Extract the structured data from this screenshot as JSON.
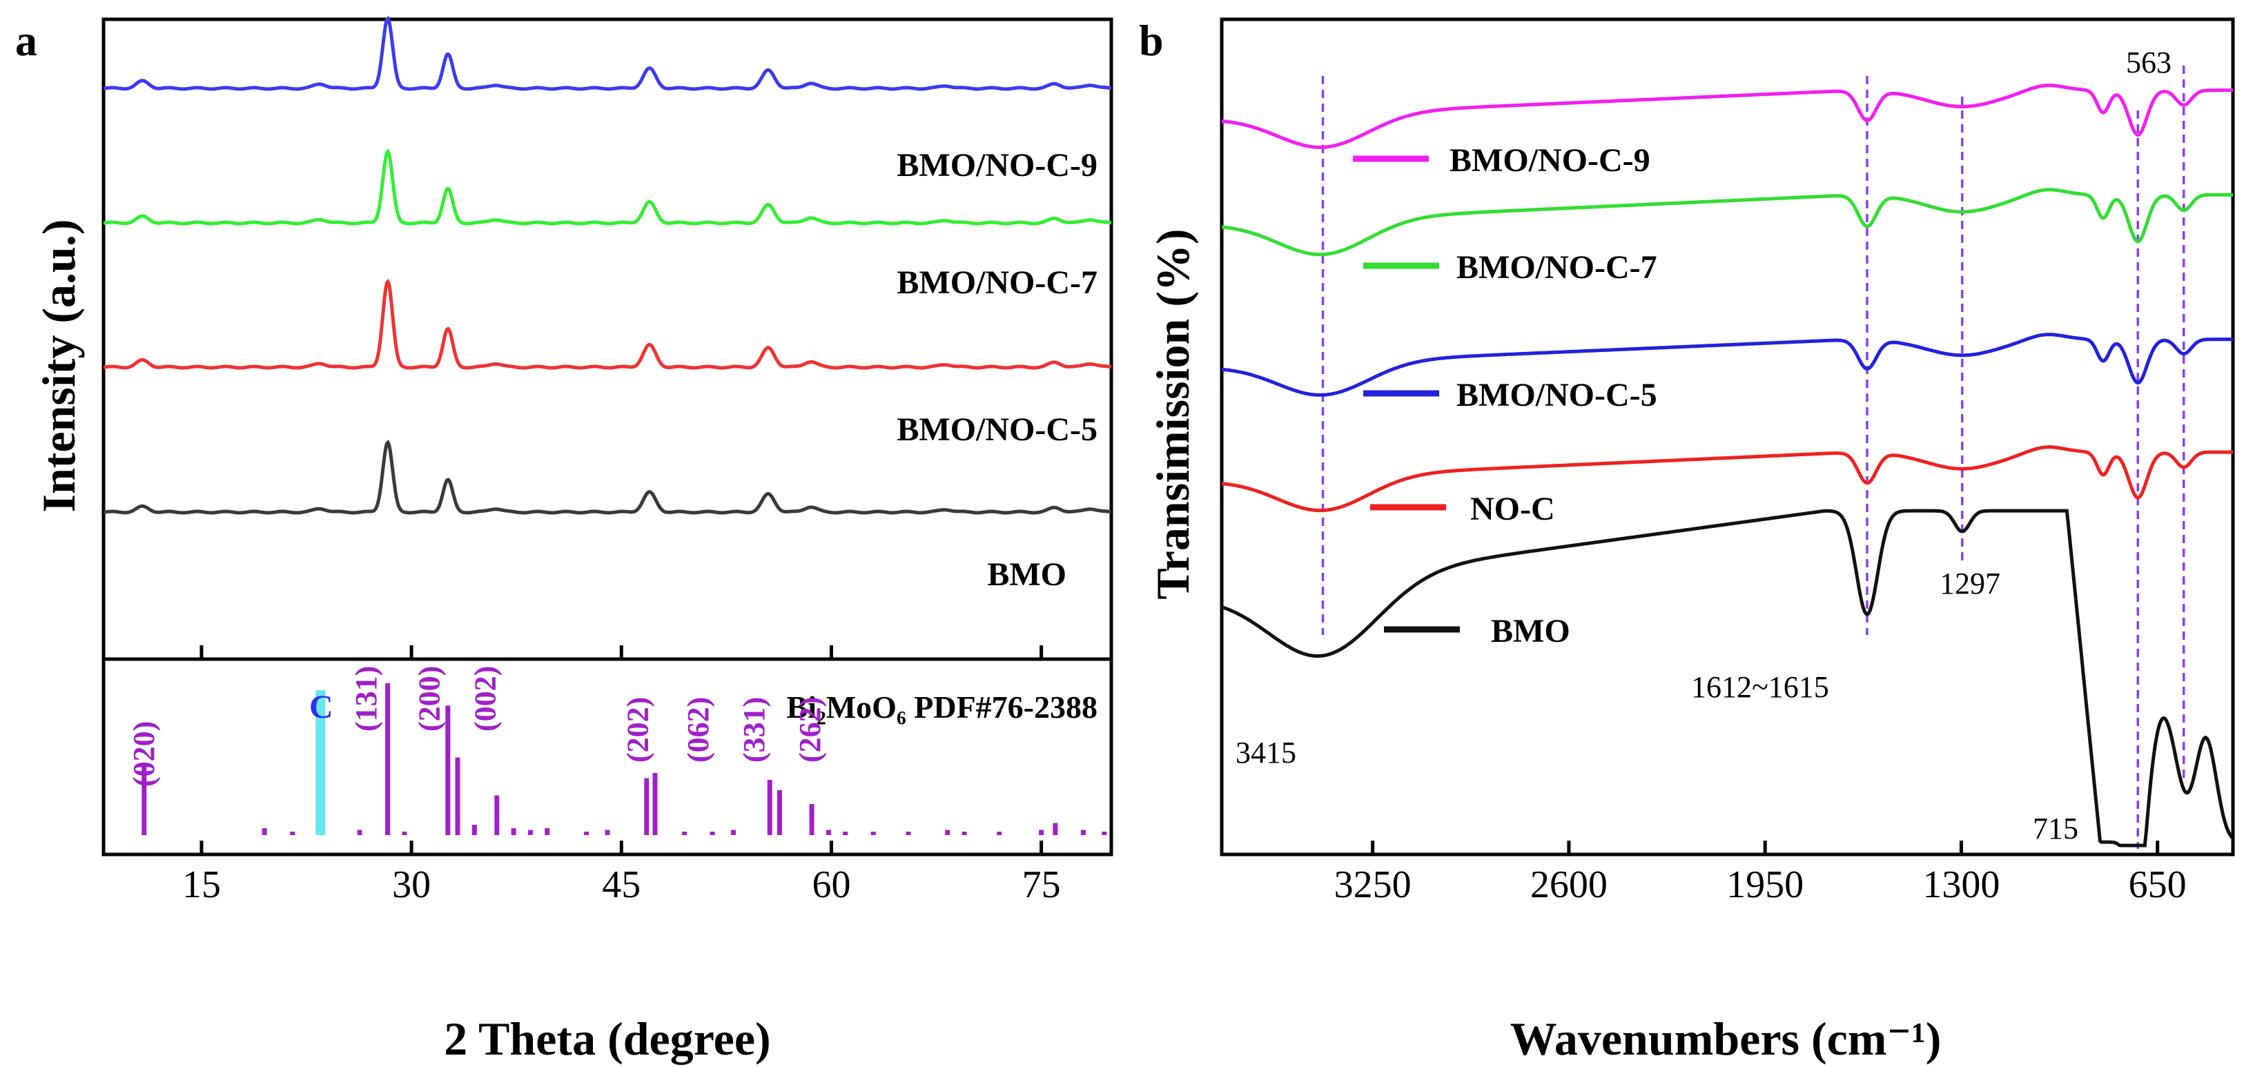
{
  "chart_data": [
    {
      "panel": "a",
      "type": "line",
      "xlabel": "2 Theta (degree)",
      "ylabel": "Intensity (a.u.)",
      "xlim": [
        8,
        80
      ],
      "xticks": [
        "15",
        "30",
        "45",
        "60",
        "75"
      ],
      "xtick_values": [
        15,
        30,
        45,
        60,
        75
      ],
      "series": [
        {
          "name": "BMO/NO-C-9",
          "color": "#3b3bf0",
          "baseline": 0.0,
          "peaks": [
            [
              10.8,
              8
            ],
            [
              23.5,
              5
            ],
            [
              28.3,
              78
            ],
            [
              32.6,
              38
            ],
            [
              36.0,
              4
            ],
            [
              47.0,
              22
            ],
            [
              55.5,
              20
            ],
            [
              58.5,
              6
            ],
            [
              68.2,
              3
            ],
            [
              76.0,
              5
            ],
            [
              78.5,
              4
            ]
          ]
        },
        {
          "name": "BMO/NO-C-7",
          "color": "#33ee33",
          "baseline": 0.0,
          "peaks": [
            [
              10.8,
              7
            ],
            [
              23.5,
              4
            ],
            [
              28.3,
              80
            ],
            [
              32.6,
              38
            ],
            [
              36.0,
              4
            ],
            [
              47.0,
              23
            ],
            [
              55.5,
              20
            ],
            [
              58.5,
              6
            ],
            [
              68.2,
              3
            ],
            [
              76.0,
              5
            ],
            [
              78.5,
              4
            ]
          ]
        },
        {
          "name": "BMO/NO-C-5",
          "color": "#ee3333",
          "baseline": 0.0,
          "peaks": [
            [
              10.8,
              7
            ],
            [
              23.5,
              4
            ],
            [
              28.3,
              90
            ],
            [
              32.6,
              40
            ],
            [
              36.0,
              4
            ],
            [
              47.0,
              23
            ],
            [
              55.5,
              20
            ],
            [
              58.5,
              6
            ],
            [
              68.2,
              3
            ],
            [
              76.0,
              5
            ],
            [
              78.5,
              4
            ]
          ]
        },
        {
          "name": "BMO",
          "color": "#3a3a3a",
          "baseline": 0.0,
          "peaks": [
            [
              10.8,
              6
            ],
            [
              23.5,
              4
            ],
            [
              28.3,
              78
            ],
            [
              32.6,
              36
            ],
            [
              36.0,
              4
            ],
            [
              47.0,
              22
            ],
            [
              55.5,
              20
            ],
            [
              58.5,
              6
            ],
            [
              68.2,
              3
            ],
            [
              76.0,
              5
            ],
            [
              78.5,
              4
            ]
          ]
        }
      ],
      "reference": {
        "title": "Bi₂MoO₆ PDF#76-2388",
        "color": "#a020c8",
        "carbon_label": "C",
        "carbon_position": 23.5,
        "carbon_color": "#66e6ee",
        "sticks": [
          [
            10.9,
            0.42
          ],
          [
            19.5,
            0.04
          ],
          [
            21.5,
            0.02
          ],
          [
            26.3,
            0.03
          ],
          [
            28.3,
            0.88
          ],
          [
            29.5,
            0.02
          ],
          [
            32.6,
            0.75
          ],
          [
            33.3,
            0.45
          ],
          [
            34.5,
            0.06
          ],
          [
            36.1,
            0.23
          ],
          [
            37.3,
            0.04
          ],
          [
            38.5,
            0.03
          ],
          [
            39.7,
            0.04
          ],
          [
            42.5,
            0.02
          ],
          [
            44.0,
            0.03
          ],
          [
            46.8,
            0.33
          ],
          [
            47.4,
            0.36
          ],
          [
            49.5,
            0.02
          ],
          [
            51.5,
            0.02
          ],
          [
            53.0,
            0.03
          ],
          [
            55.6,
            0.32
          ],
          [
            56.3,
            0.26
          ],
          [
            58.6,
            0.18
          ],
          [
            59.8,
            0.03
          ],
          [
            61.0,
            0.02
          ],
          [
            63.0,
            0.02
          ],
          [
            65.5,
            0.02
          ],
          [
            68.3,
            0.03
          ],
          [
            69.5,
            0.02
          ],
          [
            72.0,
            0.02
          ],
          [
            75.0,
            0.03
          ],
          [
            76.0,
            0.07
          ],
          [
            78.0,
            0.03
          ],
          [
            79.5,
            0.02
          ]
        ],
        "plane_labels": [
          {
            "text": "(020)",
            "x": 10.9
          },
          {
            "text": "(131)",
            "x": 26.8
          },
          {
            "text": "(200)",
            "x": 31.3
          },
          {
            "text": "(002)",
            "x": 35.3
          },
          {
            "text": "(202)",
            "x": 46.2
          },
          {
            "text": "(062)",
            "x": 50.5
          },
          {
            "text": "(331)",
            "x": 54.5
          },
          {
            "text": "(262)",
            "x": 58.5
          }
        ]
      }
    },
    {
      "panel": "b",
      "type": "line",
      "xlabel": "Wavenumbers (cm⁻¹)",
      "ylabel": "Transimission (%)",
      "xlim": [
        3750,
        400
      ],
      "xticks": [
        "3250",
        "2600",
        "1950",
        "1300",
        "650"
      ],
      "xtick_values": [
        3250,
        2600,
        1950,
        1300,
        650
      ],
      "marker_lines": [
        3415,
        1612,
        1297,
        715,
        563
      ],
      "annotations": [
        "3415",
        "1612~1615",
        "1297",
        "715",
        "563"
      ],
      "series": [
        {
          "name": "BMO/NO-C-9",
          "color": "#f020f0",
          "depth": 0.35
        },
        {
          "name": "BMO/NO-C-7",
          "color": "#33dd33",
          "depth": 0.45
        },
        {
          "name": "BMO/NO-C-5",
          "color": "#2222dd",
          "depth": 0.3
        },
        {
          "name": "NO-C",
          "color": "#ee2222",
          "depth": 0.4
        },
        {
          "name": "BMO",
          "color": "#111111",
          "depth": 1.0
        }
      ]
    }
  ]
}
